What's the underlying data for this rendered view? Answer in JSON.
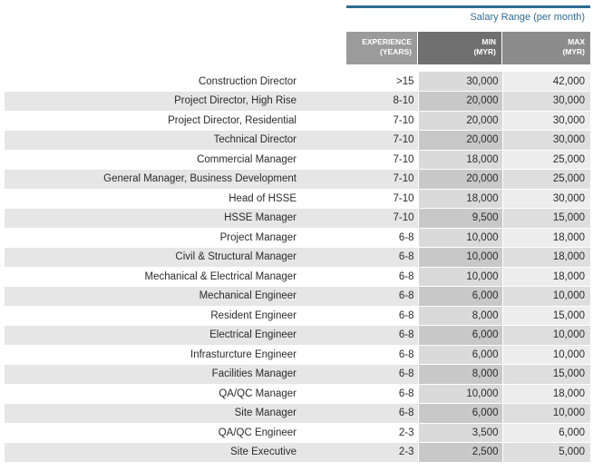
{
  "header": {
    "range_title": "Salary Range (per month)",
    "col_experience": [
      "EXPERIENCE",
      "(YEARS)"
    ],
    "col_min": [
      "MIN",
      "(MYR)"
    ],
    "col_max": [
      "MAX",
      "(MYR)"
    ]
  },
  "rows": [
    {
      "role": "Construction Director",
      "exp": ">15",
      "min": "30,000",
      "max": "42,000"
    },
    {
      "role": "Project Director, High Rise",
      "exp": "8-10",
      "min": "20,000",
      "max": "30,000"
    },
    {
      "role": "Project Director, Residential",
      "exp": "7-10",
      "min": "20,000",
      "max": "30,000"
    },
    {
      "role": "Technical Director",
      "exp": "7-10",
      "min": "20,000",
      "max": "30,000"
    },
    {
      "role": "Commercial Manager",
      "exp": "7-10",
      "min": "18,000",
      "max": "25,000"
    },
    {
      "role": "General Manager, Business Development",
      "exp": "7-10",
      "min": "20,000",
      "max": "25,000"
    },
    {
      "role": "Head of HSSE",
      "exp": "7-10",
      "min": "18,000",
      "max": "30,000"
    },
    {
      "role": "HSSE Manager",
      "exp": "7-10",
      "min": "9,500",
      "max": "15,000"
    },
    {
      "role": "Project Manager",
      "exp": "6-8",
      "min": "10,000",
      "max": "18,000"
    },
    {
      "role": "Civil & Structural Manager",
      "exp": "6-8",
      "min": "10,000",
      "max": "18,000"
    },
    {
      "role": "Mechanical & Electrical Manager",
      "exp": "6-8",
      "min": "10,000",
      "max": "18,000"
    },
    {
      "role": "Mechanical Engineer",
      "exp": "6-8",
      "min": "6,000",
      "max": "10,000"
    },
    {
      "role": "Resident Engineer",
      "exp": "6-8",
      "min": "8,000",
      "max": "15,000"
    },
    {
      "role": "Electrical Engineer",
      "exp": "6-8",
      "min": "6,000",
      "max": "10,000"
    },
    {
      "role": "Infrasturcture Engineer",
      "exp": "6-8",
      "min": "6,000",
      "max": "10,000"
    },
    {
      "role": "Facilities Manager",
      "exp": "6-8",
      "min": "8,000",
      "max": "15,000"
    },
    {
      "role": "QA/QC Manager",
      "exp": "6-8",
      "min": "10,000",
      "max": "18,000"
    },
    {
      "role": "Site Manager",
      "exp": "6-8",
      "min": "6,000",
      "max": "10,000"
    },
    {
      "role": "QA/QC Engineer",
      "exp": "2-3",
      "min": "3,500",
      "max": "6,000"
    },
    {
      "role": "Site Executive",
      "exp": "2-3",
      "min": "2,500",
      "max": "5,000"
    }
  ]
}
